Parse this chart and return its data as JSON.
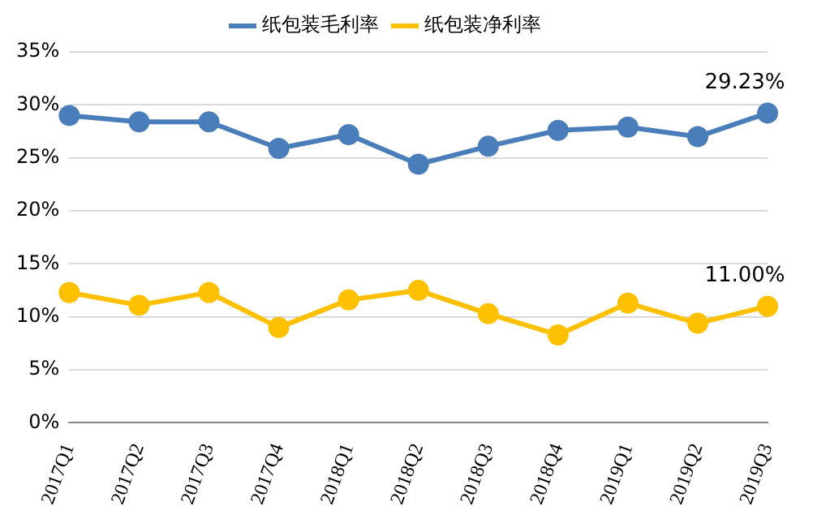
{
  "chart_data": {
    "type": "line",
    "categories": [
      "2017Q1",
      "2017Q2",
      "2017Q3",
      "2017Q4",
      "2018Q1",
      "2018Q2",
      "2018Q3",
      "2018Q4",
      "2019Q1",
      "2019Q2",
      "2019Q3"
    ],
    "series": [
      {
        "name": "纸包装毛利率",
        "color": "#4a7ebb",
        "values": [
          29.0,
          28.4,
          28.4,
          25.9,
          27.2,
          24.4,
          26.1,
          27.6,
          27.9,
          27.0,
          29.23
        ]
      },
      {
        "name": "纸包装净利率",
        "color": "#ffc000",
        "values": [
          12.3,
          11.1,
          12.3,
          9.0,
          11.6,
          12.5,
          10.3,
          8.3,
          11.3,
          9.4,
          11.0
        ]
      }
    ],
    "ylim": [
      0,
      35
    ],
    "yticks": [
      {
        "value": 0,
        "label": "0%"
      },
      {
        "value": 5,
        "label": "5%"
      },
      {
        "value": 10,
        "label": "10%"
      },
      {
        "value": 15,
        "label": "15%"
      },
      {
        "value": 20,
        "label": "20%"
      },
      {
        "value": 25,
        "label": "25%"
      },
      {
        "value": 30,
        "label": "30%"
      },
      {
        "value": 35,
        "label": "35%"
      }
    ],
    "grid": "y",
    "legend": "top",
    "marker": "circle",
    "line_style": "solid",
    "annotations": [
      {
        "text": "29.23%",
        "x": "2019Q3",
        "y": 29.23
      },
      {
        "text": "11.00%",
        "x": "2019Q3",
        "y": 11.0
      }
    ]
  }
}
